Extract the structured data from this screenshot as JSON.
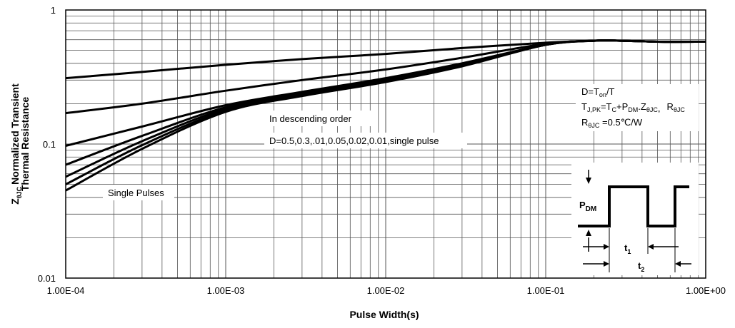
{
  "chart_data": {
    "type": "line",
    "xscale": "log",
    "yscale": "log",
    "xlim": [
      0.0001,
      1
    ],
    "ylim": [
      0.01,
      1
    ],
    "grid": true,
    "xlabel": "Pulse Width(s)",
    "ylabel": "Z",
    "ylabel_sub": "θJC",
    "ylabel_rest": "Normalized Transient",
    "ylabel_line2": "Thermal Resistance",
    "x_ticks": [
      "1.00E-04",
      "1.00E-03",
      "1.00E-02",
      "1.00E-01",
      "1.00E+00"
    ],
    "y_ticks": [
      "1",
      "0.1",
      "0.01"
    ],
    "annotations": {
      "order_title": "In descending order",
      "order_list": "D=0.5,0.3,.01,0.05,0.02,0.01,single  pulse",
      "single_pulses": "Single Pulses",
      "formula_d": "D=T",
      "formula_d_sub": "on",
      "formula_d_end": "/T",
      "formula_t": "T",
      "formula_t_sub": "J,PK",
      "formula_t_eq": "=T",
      "formula_t_c": "C",
      "formula_t_plus": "+P",
      "formula_t_dm": "DM",
      "formula_t_z": ".Z",
      "formula_t_thjc": "θJC。",
      "formula_t_r": " R",
      "formula_t_rsub": "θJC",
      "formula_r": "R",
      "formula_r_sub": "θJC",
      "formula_r_val": " =0.5℃/W",
      "pulse_pdm": "P",
      "pulse_pdm_sub": "DM",
      "pulse_t1": "t",
      "pulse_t1_sub": "1",
      "pulse_t2": "t",
      "pulse_t2_sub": "2"
    },
    "series": [
      {
        "values": [
          [
            0.0001,
            0.31
          ],
          [
            0.0003,
            0.345
          ],
          [
            0.001,
            0.39
          ],
          [
            0.003,
            0.43
          ],
          [
            0.01,
            0.47
          ],
          [
            0.03,
            0.52
          ],
          [
            0.1,
            0.57
          ],
          [
            0.2,
            0.59
          ],
          [
            0.3,
            0.59
          ],
          [
            0.5,
            0.58
          ],
          [
            1,
            0.58
          ]
        ]
      },
      {
        "values": [
          [
            0.0001,
            0.17
          ],
          [
            0.0003,
            0.2
          ],
          [
            0.001,
            0.25
          ],
          [
            0.003,
            0.3
          ],
          [
            0.01,
            0.36
          ],
          [
            0.03,
            0.44
          ],
          [
            0.1,
            0.56
          ],
          [
            0.2,
            0.59
          ],
          [
            0.3,
            0.59
          ],
          [
            0.5,
            0.58
          ],
          [
            1,
            0.58
          ]
        ]
      },
      {
        "values": [
          [
            0.0001,
            0.097
          ],
          [
            0.0003,
            0.135
          ],
          [
            0.001,
            0.195
          ],
          [
            0.003,
            0.245
          ],
          [
            0.01,
            0.31
          ],
          [
            0.03,
            0.4
          ],
          [
            0.1,
            0.55
          ],
          [
            0.2,
            0.59
          ],
          [
            0.3,
            0.59
          ],
          [
            0.5,
            0.58
          ],
          [
            1,
            0.58
          ]
        ]
      },
      {
        "values": [
          [
            0.0001,
            0.07
          ],
          [
            0.0003,
            0.115
          ],
          [
            0.001,
            0.188
          ],
          [
            0.003,
            0.24
          ],
          [
            0.01,
            0.305
          ],
          [
            0.03,
            0.395
          ],
          [
            0.1,
            0.55
          ],
          [
            0.2,
            0.59
          ],
          [
            0.3,
            0.59
          ],
          [
            0.5,
            0.58
          ],
          [
            1,
            0.58
          ]
        ]
      },
      {
        "values": [
          [
            0.0001,
            0.057
          ],
          [
            0.0003,
            0.105
          ],
          [
            0.001,
            0.183
          ],
          [
            0.003,
            0.235
          ],
          [
            0.01,
            0.3
          ],
          [
            0.03,
            0.39
          ],
          [
            0.1,
            0.55
          ],
          [
            0.2,
            0.59
          ],
          [
            0.3,
            0.59
          ],
          [
            0.5,
            0.58
          ],
          [
            1,
            0.58
          ]
        ]
      },
      {
        "values": [
          [
            0.0001,
            0.05
          ],
          [
            0.0003,
            0.098
          ],
          [
            0.001,
            0.178
          ],
          [
            0.003,
            0.232
          ],
          [
            0.01,
            0.295
          ],
          [
            0.03,
            0.385
          ],
          [
            0.1,
            0.55
          ],
          [
            0.2,
            0.59
          ],
          [
            0.3,
            0.59
          ],
          [
            0.5,
            0.58
          ],
          [
            1,
            0.58
          ]
        ]
      },
      {
        "values": [
          [
            0.0001,
            0.045
          ],
          [
            0.0003,
            0.092
          ],
          [
            0.001,
            0.174
          ],
          [
            0.003,
            0.228
          ],
          [
            0.01,
            0.29
          ],
          [
            0.03,
            0.38
          ],
          [
            0.1,
            0.55
          ],
          [
            0.2,
            0.59
          ],
          [
            0.3,
            0.59
          ],
          [
            0.5,
            0.58
          ],
          [
            1,
            0.58
          ]
        ]
      }
    ],
    "line_color": "#000000",
    "grid_color": "#555555"
  }
}
